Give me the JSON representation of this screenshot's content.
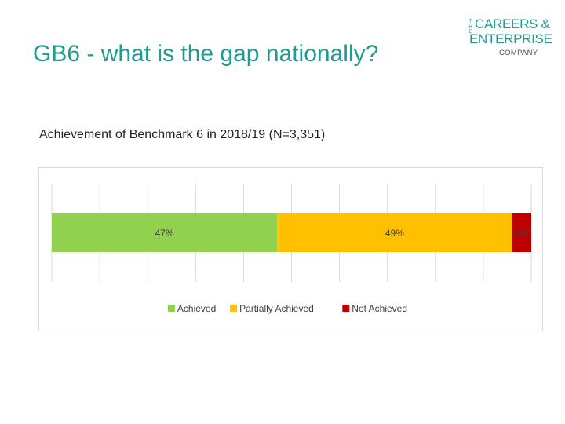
{
  "slide": {
    "title": "GB6 - what is the gap nationally?"
  },
  "logo": {
    "the": "THE",
    "line1": "CAREERS &",
    "line2": "ENTERPRISE",
    "line3": "COMPANY"
  },
  "chart_data": {
    "type": "bar",
    "orientation": "horizontal",
    "stacked": true,
    "title": "Achievement of Benchmark 6 in 2018/19 (N=3,351)",
    "categories": [
      ""
    ],
    "series": [
      {
        "name": "Achieved",
        "values": [
          47
        ],
        "label": "47%",
        "color": "#92d050"
      },
      {
        "name": "Partially Achieved",
        "values": [
          49
        ],
        "label": "49%",
        "color": "#ffc000"
      },
      {
        "name": "Not Achieved",
        "values": [
          4
        ],
        "label": "4%",
        "color": "#c00000"
      }
    ],
    "xlim": [
      0,
      100
    ],
    "grid": true,
    "legend": "bottom"
  }
}
